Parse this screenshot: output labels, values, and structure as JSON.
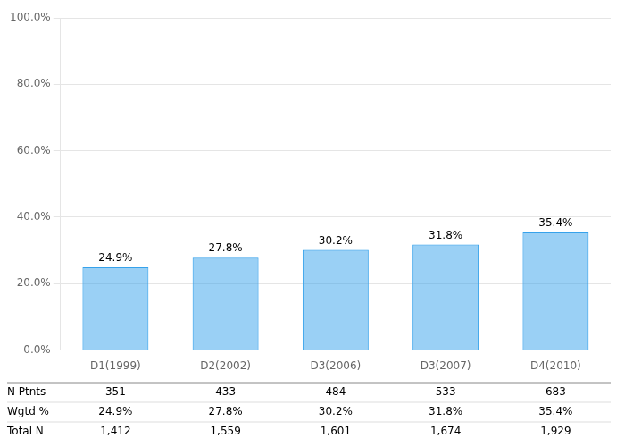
{
  "chart_data": {
    "type": "bar",
    "categories": [
      "D1(1999)",
      "D2(2002)",
      "D3(2006)",
      "D3(2007)",
      "D4(2010)"
    ],
    "values": [
      24.9,
      27.8,
      30.2,
      31.8,
      35.4
    ],
    "value_labels": [
      "24.9%",
      "27.8%",
      "30.2%",
      "31.8%",
      "35.4%"
    ],
    "data_labels": true,
    "ylim": [
      0,
      100
    ],
    "yticks": [
      {
        "value": 0,
        "label": "0.0%"
      },
      {
        "value": 20,
        "label": "20.0%"
      },
      {
        "value": 40,
        "label": "40.0%"
      },
      {
        "value": 60,
        "label": "60.0%"
      },
      {
        "value": 80,
        "label": "80.0%"
      },
      {
        "value": 100,
        "label": "100.0%"
      }
    ],
    "grid": true,
    "table": [
      {
        "label": "N Ptnts",
        "cells": [
          "351",
          "433",
          "484",
          "533",
          "683"
        ]
      },
      {
        "label": "Wgtd %",
        "cells": [
          "24.9%",
          "27.8%",
          "30.2%",
          "31.8%",
          "35.4%"
        ]
      },
      {
        "label": "Total N",
        "cells": [
          "1,412",
          "1,559",
          "1,601",
          "1,674",
          "1,929"
        ]
      }
    ]
  }
}
